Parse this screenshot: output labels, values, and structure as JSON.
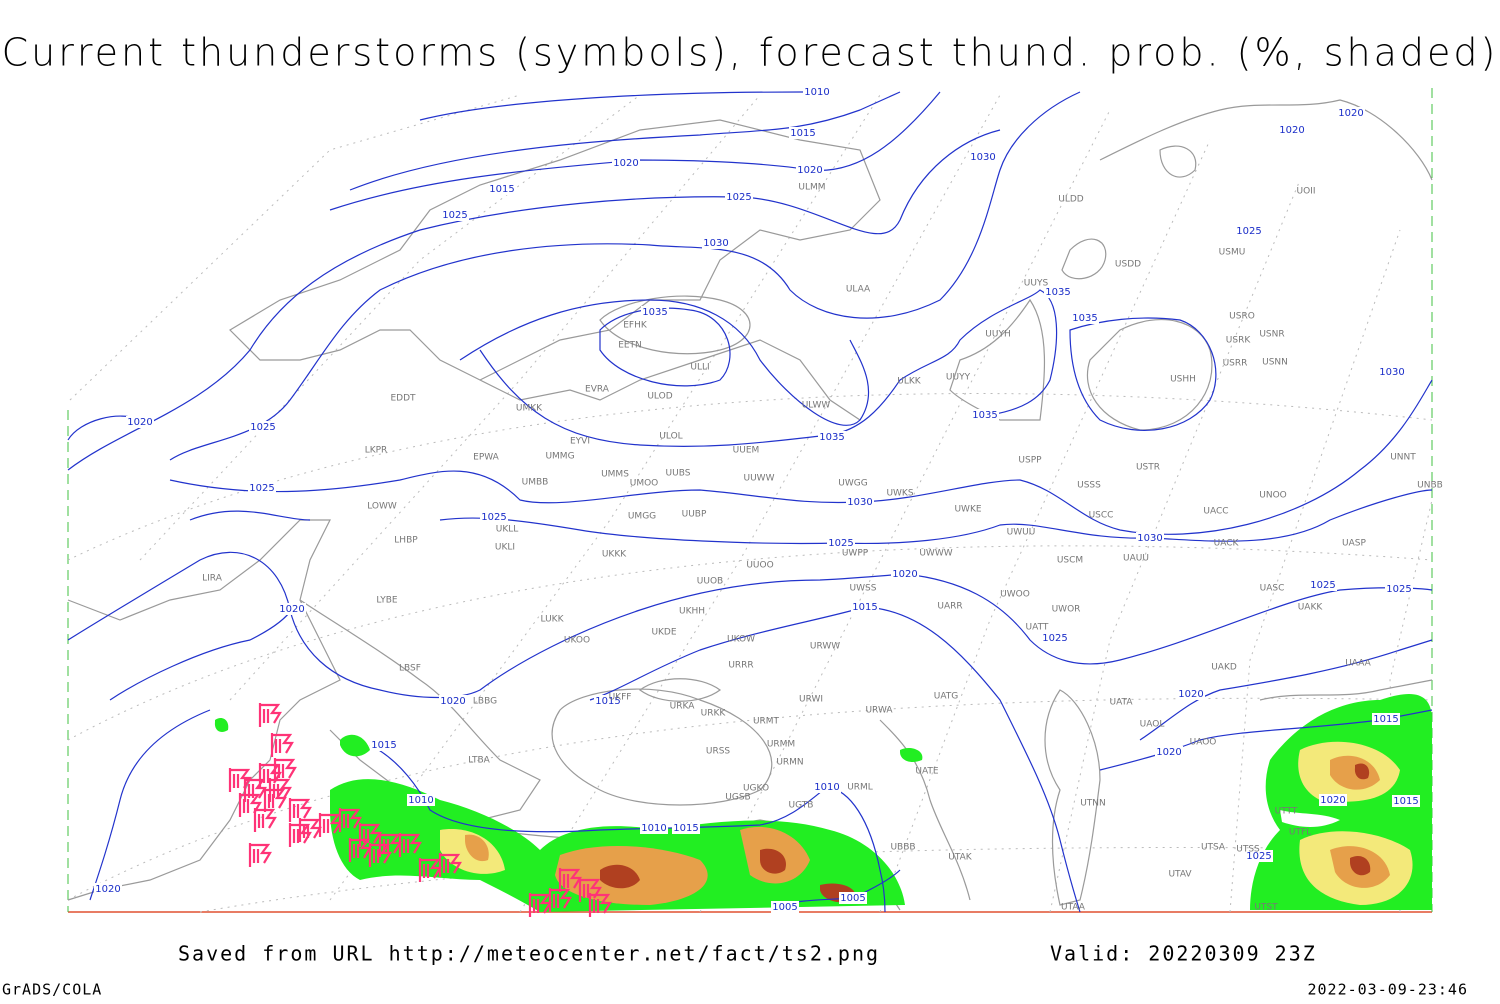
{
  "title": "Current thunderstorms (symbols), forecast thund. prob. (%, shaded)",
  "footer": {
    "source": "Saved from URL http://meteocenter.net/fact/ts2.png",
    "valid": "Valid: 20220309 23Z",
    "software": "GrADS/COLA",
    "timestamp": "2022-03-09-23:46"
  },
  "isobar_labels": [
    1010,
    1015,
    1020,
    1020,
    1015,
    1025,
    1025,
    1030,
    1030,
    1035,
    1025,
    1020,
    1020,
    1035,
    1035,
    1035,
    1035,
    1030,
    1030,
    1020,
    1025,
    1025,
    1025,
    1025,
    1030,
    1020,
    1015,
    1025,
    1025,
    1025,
    1020,
    1020,
    1015,
    1015,
    1010,
    1010,
    1010,
    1015,
    1020,
    1020,
    1020,
    1015,
    1015,
    1025,
    1005,
    1005,
    1020
  ],
  "stations": [
    "ULMM",
    "ULDD",
    "UOII",
    "USMU",
    "USDD",
    "ULAA",
    "UUYS",
    "USRO",
    "USRK",
    "USNR",
    "USRR",
    "USNN",
    "UUYH",
    "EFHK",
    "EETN",
    "ULLI",
    "EVRA",
    "ULOD",
    "ULKK",
    "UUYY",
    "USHH",
    "EDDT",
    "UMKK",
    "ULWW",
    "ULOL",
    "EYVI",
    "UUEM",
    "LKPR",
    "EPWA",
    "UMMG",
    "USPP",
    "USTR",
    "UNNT",
    "UMMS",
    "UUBS",
    "UUWW",
    "UWGG",
    "UMOO",
    "UMBB",
    "USSS",
    "UNOO",
    "UNBB",
    "UWKS",
    "LOWW",
    "UWKE",
    "USCC",
    "UACC",
    "UMGG",
    "UUBP",
    "UKLL",
    "UWUU",
    "LHBP",
    "UKLI",
    "UWPP",
    "UWWW",
    "UACK",
    "UASP",
    "UKKK",
    "USCM",
    "UAUU",
    "UUOO",
    "LIRA",
    "UUOB",
    "UWSS",
    "UASC",
    "LYBE",
    "UAKK",
    "UKHH",
    "UARR",
    "UWOO",
    "UWOR",
    "LUKK",
    "UKDE",
    "URWW",
    "UKOO",
    "UKOW",
    "UATT",
    "LBSF",
    "URRR",
    "UAKD",
    "UAAA",
    "LBBG",
    "UKFF",
    "URKA",
    "URKK",
    "URWI",
    "UATG",
    "UATA",
    "URMT",
    "URWA",
    "UAOL",
    "URSS",
    "URMM",
    "UAOO",
    "URMN",
    "UATE",
    "UGKO",
    "URML",
    "UGSB",
    "UGTB",
    "UTNN",
    "UBBB",
    "UTAK",
    "UTSA",
    "UTSS",
    "UTAV",
    "UTAA",
    "UTST",
    "UTFL",
    "UTTT",
    "LTBA"
  ]
}
